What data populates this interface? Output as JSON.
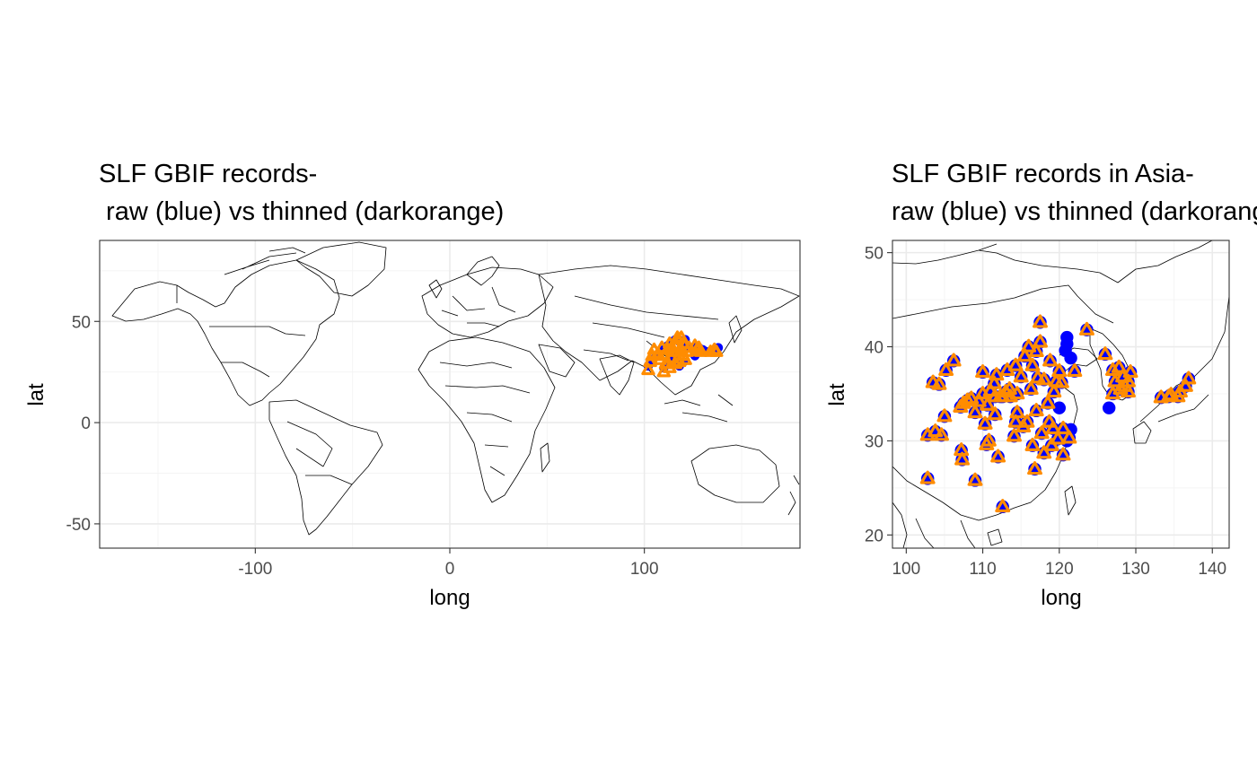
{
  "chart_data": [
    {
      "type": "map-scatter",
      "title_line1": "SLF GBIF records-",
      "title_line2": " raw (blue) vs thinned (darkorange)",
      "xlabel": "long",
      "ylabel": "lat",
      "xlim": [
        -180,
        180
      ],
      "ylim": [
        -62,
        90
      ],
      "x_ticks": [
        -100,
        0,
        100
      ],
      "y_ticks": [
        -50,
        0,
        50
      ],
      "grid": true,
      "colors": {
        "raw": "#0000ff",
        "thinned": "#ff8c00"
      },
      "series": [
        {
          "role": "raw",
          "points": [
            [
              102,
              28
            ],
            [
              104,
              30
            ],
            [
              106,
              33
            ],
            [
              108,
              35
            ],
            [
              110,
              36
            ],
            [
              112,
              38
            ],
            [
              114,
              40
            ],
            [
              116,
              41
            ],
            [
              118,
              40
            ],
            [
              120,
              39
            ],
            [
              122,
              38
            ],
            [
              124,
              37
            ],
            [
              126,
              37
            ],
            [
              128,
              37
            ],
            [
              130,
              36
            ],
            [
              127,
              35
            ],
            [
              126,
              33
            ],
            [
              132,
              35
            ],
            [
              134,
              35
            ],
            [
              136,
              36
            ],
            [
              138,
              37
            ],
            [
              120,
              30
            ],
            [
              118,
              28
            ],
            [
              116,
              31
            ],
            [
              114,
              33
            ],
            [
              112,
              30
            ],
            [
              110,
              27
            ],
            [
              121,
              41
            ]
          ]
        },
        {
          "role": "thinned",
          "points": [
            [
              102,
              26
            ],
            [
              103,
              30
            ],
            [
              104,
              33
            ],
            [
              105,
              36
            ],
            [
              107,
              34
            ],
            [
              108,
              31
            ],
            [
              109,
              37
            ],
            [
              110,
              33
            ],
            [
              111,
              29
            ],
            [
              112,
              36
            ],
            [
              113,
              39
            ],
            [
              114,
              32
            ],
            [
              115,
              35
            ],
            [
              116,
              38
            ],
            [
              117,
              41
            ],
            [
              118,
              33
            ],
            [
              119,
              36
            ],
            [
              120,
              39
            ],
            [
              121,
              31
            ],
            [
              122,
              35
            ],
            [
              116,
              29
            ],
            [
              113,
              27
            ],
            [
              110,
              25
            ],
            [
              118,
              30
            ],
            [
              120,
              33
            ],
            [
              123,
              37
            ],
            [
              126,
              38
            ],
            [
              127,
              36
            ],
            [
              128,
              37
            ],
            [
              129,
              35
            ],
            [
              134,
              35
            ],
            [
              136,
              36
            ],
            [
              137,
              35
            ],
            [
              117,
              42
            ],
            [
              114,
              37
            ],
            [
              119,
              42
            ]
          ]
        }
      ]
    },
    {
      "type": "map-scatter",
      "title_line1": "SLF GBIF records in Asia-",
      "title_line2": "raw (blue) vs thinned (darkorange)",
      "xlabel": "long",
      "ylabel": "lat",
      "xlim": [
        98.2,
        142.2
      ],
      "ylim": [
        18.6,
        51.3
      ],
      "x_ticks": [
        100,
        110,
        120,
        130,
        140
      ],
      "y_ticks": [
        20,
        30,
        40,
        50
      ],
      "grid": true,
      "colors": {
        "raw": "#0000ff",
        "thinned": "#ff8c00"
      },
      "series": [
        {
          "role": "raw",
          "points": [
            [
              102.8,
              26
            ],
            [
              102.8,
              30.6
            ],
            [
              103.5,
              36.2
            ],
            [
              103.8,
              31
            ],
            [
              104.3,
              36
            ],
            [
              104.6,
              30.6
            ],
            [
              105,
              32.6
            ],
            [
              105.2,
              37.5
            ],
            [
              106.2,
              38.5
            ],
            [
              107.1,
              33.6
            ],
            [
              107.2,
              29
            ],
            [
              107.3,
              28
            ],
            [
              107.5,
              34
            ],
            [
              108,
              34.3
            ],
            [
              108.5,
              34.5
            ],
            [
              109,
              25.8
            ],
            [
              109,
              33
            ],
            [
              109.5,
              34.2
            ],
            [
              110,
              37.3
            ],
            [
              110,
              35
            ],
            [
              110.3,
              31.8
            ],
            [
              110.5,
              29.6
            ],
            [
              110.6,
              33.8
            ],
            [
              110.8,
              30
            ],
            [
              111,
              35.3
            ],
            [
              111.5,
              36.1
            ],
            [
              111.6,
              34.7
            ],
            [
              111.6,
              32.8
            ],
            [
              111.8,
              37
            ],
            [
              112,
              28.3
            ],
            [
              112.3,
              34.7
            ],
            [
              112.6,
              23
            ],
            [
              112.6,
              34.7
            ],
            [
              113,
              35.2
            ],
            [
              113.2,
              37.5
            ],
            [
              113.5,
              35.5
            ],
            [
              113.6,
              34.7
            ],
            [
              114.1,
              30.5
            ],
            [
              114.3,
              32
            ],
            [
              114.3,
              38
            ],
            [
              114.5,
              35
            ],
            [
              114.5,
              33
            ],
            [
              115,
              36.8
            ],
            [
              115.3,
              31.5
            ],
            [
              115.5,
              39
            ],
            [
              115.8,
              32
            ],
            [
              116,
              40
            ],
            [
              116.3,
              35.5
            ],
            [
              116.5,
              29.5
            ],
            [
              116.5,
              38
            ],
            [
              116.8,
              27
            ],
            [
              117,
              39.5
            ],
            [
              117,
              33.2
            ],
            [
              117.2,
              36.7
            ],
            [
              117.5,
              40.5
            ],
            [
              117.5,
              42.6
            ],
            [
              117.7,
              30.8
            ],
            [
              118,
              36.5
            ],
            [
              118,
              28.7
            ],
            [
              118.5,
              34
            ],
            [
              118.7,
              32
            ],
            [
              118.8,
              38.5
            ],
            [
              119,
              29.5
            ],
            [
              119.2,
              31.3
            ],
            [
              119.3,
              35.2
            ],
            [
              119.6,
              36.3
            ],
            [
              119.8,
              30.2
            ],
            [
              120,
              37.4
            ],
            [
              120,
              33.5
            ],
            [
              120.3,
              36.2
            ],
            [
              120.5,
              31.3
            ],
            [
              120.5,
              28.5
            ],
            [
              120.8,
              39.6
            ],
            [
              121,
              41
            ],
            [
              121,
              40.3
            ],
            [
              121,
              30
            ],
            [
              121.3,
              30.3
            ],
            [
              121.5,
              31.2
            ],
            [
              121.5,
              38.8
            ],
            [
              122,
              37.4
            ],
            [
              123.6,
              41.8
            ],
            [
              126,
              39.2
            ],
            [
              126.5,
              33.5
            ],
            [
              127,
              37.5
            ],
            [
              127,
              35
            ],
            [
              127.3,
              36.3
            ],
            [
              127.8,
              37.8
            ],
            [
              128,
              35.5
            ],
            [
              128.3,
              36.8
            ],
            [
              128.6,
              35.8
            ],
            [
              129,
              35.2
            ],
            [
              129.3,
              37.3
            ],
            [
              129,
              36.3
            ],
            [
              133.3,
              34.6
            ],
            [
              134.3,
              34.7
            ],
            [
              134.6,
              34.9
            ],
            [
              135.5,
              34.7
            ],
            [
              135.8,
              35.2
            ],
            [
              136.5,
              35.8
            ],
            [
              136.9,
              36.6
            ]
          ]
        },
        {
          "role": "thinned",
          "points": [
            [
              102.8,
              26
            ],
            [
              102.8,
              30.6
            ],
            [
              103.5,
              36.2
            ],
            [
              103.8,
              31
            ],
            [
              104.3,
              36
            ],
            [
              104.6,
              30.6
            ],
            [
              105,
              32.6
            ],
            [
              105.2,
              37.5
            ],
            [
              106.2,
              38.5
            ],
            [
              107.1,
              33.6
            ],
            [
              107.2,
              29
            ],
            [
              107.3,
              28
            ],
            [
              107.5,
              34
            ],
            [
              108,
              34.3
            ],
            [
              108.5,
              34.5
            ],
            [
              109,
              25.8
            ],
            [
              109,
              33
            ],
            [
              109.5,
              34.2
            ],
            [
              110,
              37.3
            ],
            [
              110,
              35
            ],
            [
              110.3,
              31.8
            ],
            [
              110.5,
              29.6
            ],
            [
              110.6,
              33.8
            ],
            [
              110.8,
              30
            ],
            [
              111,
              35.3
            ],
            [
              111.5,
              36.1
            ],
            [
              111.6,
              34.7
            ],
            [
              111.6,
              32.8
            ],
            [
              111.8,
              37
            ],
            [
              112,
              28.3
            ],
            [
              112.3,
              34.7
            ],
            [
              112.6,
              23
            ],
            [
              112.6,
              34.7
            ],
            [
              113,
              35.2
            ],
            [
              113.2,
              37.5
            ],
            [
              113.5,
              35.5
            ],
            [
              113.6,
              34.7
            ],
            [
              114.1,
              30.5
            ],
            [
              114.3,
              32
            ],
            [
              114.3,
              38
            ],
            [
              114.5,
              35
            ],
            [
              114.5,
              33
            ],
            [
              115,
              36.8
            ],
            [
              115.3,
              31.5
            ],
            [
              115.5,
              39
            ],
            [
              115.8,
              32
            ],
            [
              116,
              40
            ],
            [
              116.3,
              35.5
            ],
            [
              116.5,
              29.5
            ],
            [
              116.5,
              38
            ],
            [
              116.8,
              27
            ],
            [
              117,
              39.5
            ],
            [
              117,
              33.2
            ],
            [
              117.2,
              36.7
            ],
            [
              117.5,
              40.5
            ],
            [
              117.5,
              42.6
            ],
            [
              117.7,
              30.8
            ],
            [
              118,
              36.5
            ],
            [
              118,
              28.7
            ],
            [
              118.5,
              34
            ],
            [
              118.7,
              32
            ],
            [
              118.8,
              38.5
            ],
            [
              119,
              29.5
            ],
            [
              119.2,
              31.3
            ],
            [
              119.3,
              35.2
            ],
            [
              119.6,
              36.3
            ],
            [
              119.8,
              30.2
            ],
            [
              120,
              37.4
            ],
            [
              120.3,
              36.2
            ],
            [
              120.5,
              31.3
            ],
            [
              120.5,
              28.5
            ],
            [
              121.3,
              30.3
            ],
            [
              122,
              37.4
            ],
            [
              123.6,
              41.8
            ],
            [
              126,
              39.2
            ],
            [
              127,
              37.5
            ],
            [
              127,
              35
            ],
            [
              127.3,
              36.3
            ],
            [
              127.8,
              37.8
            ],
            [
              128,
              35.5
            ],
            [
              128.3,
              36.8
            ],
            [
              128.6,
              35.8
            ],
            [
              129,
              35.2
            ],
            [
              129.3,
              37.3
            ],
            [
              129,
              36.3
            ],
            [
              133.3,
              34.6
            ],
            [
              134.3,
              34.7
            ],
            [
              134.6,
              34.9
            ],
            [
              135.5,
              34.7
            ],
            [
              135.8,
              35.2
            ],
            [
              136.5,
              35.8
            ],
            [
              136.9,
              36.6
            ]
          ]
        }
      ]
    }
  ]
}
